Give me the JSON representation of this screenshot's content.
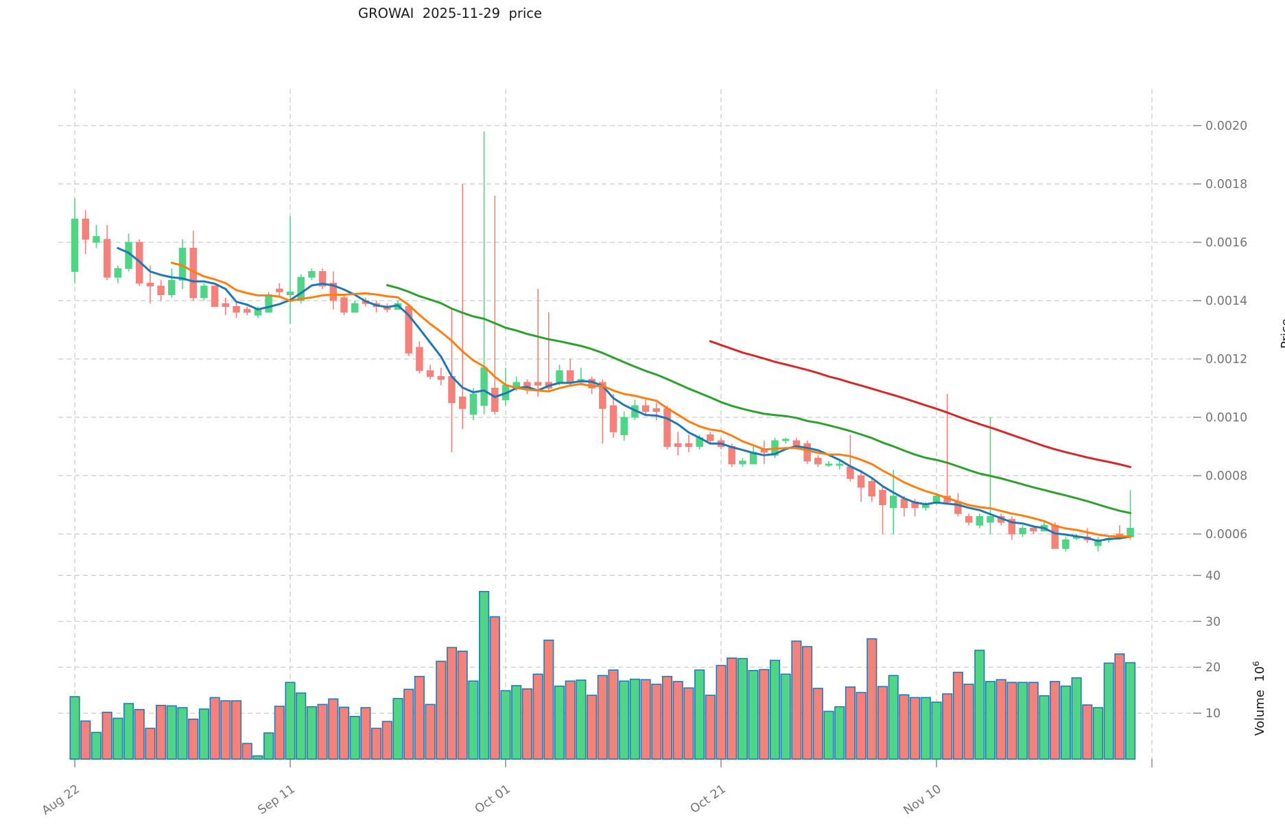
{
  "chart": {
    "title": "GROWAI  2025-11-29  price",
    "price_axis": {
      "label": "Price",
      "ticks": [
        {
          "label": "0.0020",
          "value": 0.002
        },
        {
          "label": "0.0018",
          "value": 0.0018
        },
        {
          "label": "0.0016",
          "value": 0.0016
        },
        {
          "label": "0.0014",
          "value": 0.0014
        },
        {
          "label": "0.0012",
          "value": 0.0012
        },
        {
          "label": "0.0010",
          "value": 0.001
        },
        {
          "label": "0.0008",
          "value": 0.0008
        },
        {
          "label": "0.0006",
          "value": 0.0006
        }
      ]
    },
    "volume_axis": {
      "label": "Volume",
      "unit_base": "10",
      "unit_exp": "6",
      "ticks": [
        {
          "label": "40",
          "value": 40
        },
        {
          "label": "30",
          "value": 30
        },
        {
          "label": "20",
          "value": 20
        },
        {
          "label": "10",
          "value": 10
        }
      ]
    },
    "x_axis": {
      "ticks": [
        {
          "day": 0,
          "label": "Aug 22"
        },
        {
          "day": 20,
          "label": "Sep 11"
        },
        {
          "day": 40,
          "label": "Oct 01"
        },
        {
          "day": 60,
          "label": "Oct 21"
        },
        {
          "day": 80,
          "label": "Nov 10"
        },
        {
          "day": 100,
          "label": ""
        }
      ]
    },
    "colors": {
      "up": "#50d587",
      "down": "#f4827a",
      "volume_edge": "#2379b5",
      "ma5": "#1f77b4",
      "ma10": "#ff7f0e",
      "ma30": "#2ca02c",
      "ma60": "#d62728",
      "grid": "#c9c9c9",
      "tick_text": "#757575",
      "title_text": "#1a1a1a"
    }
  },
  "chart_data": {
    "type": "candlestick",
    "title": "GROWAI  2025-11-29  price",
    "panels": [
      "price",
      "volume"
    ],
    "grid": "dashed",
    "price_ylim": [
      0.00048,
      0.00213
    ],
    "volume_ylim": [
      0,
      41
    ],
    "volume_unit": 1000000,
    "moving_averages": [
      {
        "name": "MA5",
        "window": 5,
        "color": "#1f77b4"
      },
      {
        "name": "MA10",
        "window": 10,
        "color": "#ff7f0e"
      },
      {
        "name": "MA30",
        "window": 30,
        "color": "#2ca02c"
      },
      {
        "name": "MA60",
        "window": 60,
        "color": "#d62728"
      }
    ],
    "candles": [
      {
        "d": "2025-08-22",
        "o": 0.0015,
        "h": 0.00175,
        "l": 0.00146,
        "c": 0.00168,
        "v": 13.6
      },
      {
        "d": "2025-08-23",
        "o": 0.00168,
        "h": 0.00171,
        "l": 0.00156,
        "c": 0.00161,
        "v": 8.3
      },
      {
        "d": "2025-08-24",
        "o": 0.0016,
        "h": 0.00166,
        "l": 0.00158,
        "c": 0.00162,
        "v": 5.8
      },
      {
        "d": "2025-08-25",
        "o": 0.00161,
        "h": 0.00166,
        "l": 0.00147,
        "c": 0.00148,
        "v": 10.2
      },
      {
        "d": "2025-08-26",
        "o": 0.00148,
        "h": 0.00152,
        "l": 0.00146,
        "c": 0.00151,
        "v": 8.9
      },
      {
        "d": "2025-08-27",
        "o": 0.00151,
        "h": 0.00163,
        "l": 0.0015,
        "c": 0.0016,
        "v": 12.1
      },
      {
        "d": "2025-08-28",
        "o": 0.0016,
        "h": 0.00161,
        "l": 0.00145,
        "c": 0.00146,
        "v": 10.8
      },
      {
        "d": "2025-08-29",
        "o": 0.00146,
        "h": 0.00152,
        "l": 0.00139,
        "c": 0.00145,
        "v": 6.7
      },
      {
        "d": "2025-08-30",
        "o": 0.00145,
        "h": 0.00147,
        "l": 0.0014,
        "c": 0.00142,
        "v": 11.7
      },
      {
        "d": "2025-08-31",
        "o": 0.00142,
        "h": 0.00151,
        "l": 0.00141,
        "c": 0.00147,
        "v": 11.6
      },
      {
        "d": "2025-09-01",
        "o": 0.00147,
        "h": 0.00161,
        "l": 0.00144,
        "c": 0.00158,
        "v": 11.2
      },
      {
        "d": "2025-09-02",
        "o": 0.00158,
        "h": 0.00164,
        "l": 0.0014,
        "c": 0.00141,
        "v": 8.7
      },
      {
        "d": "2025-09-03",
        "o": 0.00141,
        "h": 0.00146,
        "l": 0.0014,
        "c": 0.00145,
        "v": 10.9
      },
      {
        "d": "2025-09-04",
        "o": 0.00145,
        "h": 0.00145,
        "l": 0.00138,
        "c": 0.00138,
        "v": 13.4
      },
      {
        "d": "2025-09-05",
        "o": 0.00139,
        "h": 0.00141,
        "l": 0.00135,
        "c": 0.00138,
        "v": 12.7
      },
      {
        "d": "2025-09-06",
        "o": 0.00138,
        "h": 0.0014,
        "l": 0.00134,
        "c": 0.00136,
        "v": 12.7
      },
      {
        "d": "2025-09-07",
        "o": 0.00137,
        "h": 0.00138,
        "l": 0.00135,
        "c": 0.00136,
        "v": 3.4
      },
      {
        "d": "2025-09-08",
        "o": 0.00135,
        "h": 0.00138,
        "l": 0.00134,
        "c": 0.00137,
        "v": 0.7
      },
      {
        "d": "2025-09-09",
        "o": 0.00136,
        "h": 0.00143,
        "l": 0.00136,
        "c": 0.00142,
        "v": 5.7
      },
      {
        "d": "2025-09-10",
        "o": 0.00144,
        "h": 0.00146,
        "l": 0.00141,
        "c": 0.00143,
        "v": 11.5
      },
      {
        "d": "2025-09-11",
        "o": 0.00142,
        "h": 0.00169,
        "l": 0.00132,
        "c": 0.00143,
        "v": 16.7
      },
      {
        "d": "2025-09-12",
        "o": 0.0014,
        "h": 0.00149,
        "l": 0.00139,
        "c": 0.00148,
        "v": 14.4
      },
      {
        "d": "2025-09-13",
        "o": 0.00148,
        "h": 0.00151,
        "l": 0.00147,
        "c": 0.0015,
        "v": 11.4
      },
      {
        "d": "2025-09-14",
        "o": 0.0015,
        "h": 0.00151,
        "l": 0.00144,
        "c": 0.00145,
        "v": 11.9
      },
      {
        "d": "2025-09-15",
        "o": 0.00146,
        "h": 0.0015,
        "l": 0.00137,
        "c": 0.0014,
        "v": 13.1
      },
      {
        "d": "2025-09-16",
        "o": 0.00141,
        "h": 0.00142,
        "l": 0.00135,
        "c": 0.00136,
        "v": 11.3
      },
      {
        "d": "2025-09-17",
        "o": 0.00136,
        "h": 0.0014,
        "l": 0.00136,
        "c": 0.00139,
        "v": 9.3
      },
      {
        "d": "2025-09-18",
        "o": 0.0014,
        "h": 0.00141,
        "l": 0.00138,
        "c": 0.00139,
        "v": 11.2
      },
      {
        "d": "2025-09-19",
        "o": 0.00139,
        "h": 0.0014,
        "l": 0.00136,
        "c": 0.00138,
        "v": 6.7
      },
      {
        "d": "2025-09-20",
        "o": 0.00138,
        "h": 0.00139,
        "l": 0.00136,
        "c": 0.00137,
        "v": 8.2
      },
      {
        "d": "2025-09-21",
        "o": 0.00137,
        "h": 0.0014,
        "l": 0.00137,
        "c": 0.00139,
        "v": 13.2
      },
      {
        "d": "2025-09-22",
        "o": 0.00138,
        "h": 0.00139,
        "l": 0.00121,
        "c": 0.00122,
        "v": 15.2
      },
      {
        "d": "2025-09-23",
        "o": 0.00124,
        "h": 0.00126,
        "l": 0.00115,
        "c": 0.00116,
        "v": 18.0
      },
      {
        "d": "2025-09-24",
        "o": 0.00116,
        "h": 0.00118,
        "l": 0.00113,
        "c": 0.00114,
        "v": 11.9
      },
      {
        "d": "2025-09-25",
        "o": 0.00114,
        "h": 0.00117,
        "l": 0.00111,
        "c": 0.00113,
        "v": 21.3
      },
      {
        "d": "2025-09-26",
        "o": 0.00114,
        "h": 0.00137,
        "l": 0.00088,
        "c": 0.00105,
        "v": 24.3
      },
      {
        "d": "2025-09-27",
        "o": 0.00107,
        "h": 0.0018,
        "l": 0.00096,
        "c": 0.00103,
        "v": 23.5
      },
      {
        "d": "2025-09-28",
        "o": 0.00101,
        "h": 0.0011,
        "l": 0.00099,
        "c": 0.00108,
        "v": 17.0
      },
      {
        "d": "2025-09-29",
        "o": 0.00104,
        "h": 0.00198,
        "l": 0.00101,
        "c": 0.00117,
        "v": 36.5
      },
      {
        "d": "2025-09-30",
        "o": 0.0011,
        "h": 0.00176,
        "l": 0.00101,
        "c": 0.00102,
        "v": 31.0
      },
      {
        "d": "2025-10-01",
        "o": 0.00106,
        "h": 0.00117,
        "l": 0.00104,
        "c": 0.00111,
        "v": 14.9
      },
      {
        "d": "2025-10-02",
        "o": 0.0011,
        "h": 0.00114,
        "l": 0.00109,
        "c": 0.00112,
        "v": 16.0
      },
      {
        "d": "2025-10-03",
        "o": 0.00112,
        "h": 0.00113,
        "l": 0.00108,
        "c": 0.0011,
        "v": 15.3
      },
      {
        "d": "2025-10-04",
        "o": 0.00112,
        "h": 0.00144,
        "l": 0.00107,
        "c": 0.00111,
        "v": 18.5
      },
      {
        "d": "2025-10-05",
        "o": 0.00112,
        "h": 0.00136,
        "l": 0.00109,
        "c": 0.0011,
        "v": 25.9
      },
      {
        "d": "2025-10-06",
        "o": 0.00112,
        "h": 0.00118,
        "l": 0.00111,
        "c": 0.00116,
        "v": 15.9
      },
      {
        "d": "2025-10-07",
        "o": 0.00116,
        "h": 0.0012,
        "l": 0.00111,
        "c": 0.00112,
        "v": 17.0
      },
      {
        "d": "2025-10-08",
        "o": 0.00112,
        "h": 0.00117,
        "l": 0.00111,
        "c": 0.00113,
        "v": 17.2
      },
      {
        "d": "2025-10-09",
        "o": 0.00113,
        "h": 0.00114,
        "l": 0.00108,
        "c": 0.0011,
        "v": 13.9
      },
      {
        "d": "2025-10-10",
        "o": 0.00112,
        "h": 0.00113,
        "l": 0.00091,
        "c": 0.00103,
        "v": 18.2
      },
      {
        "d": "2025-10-11",
        "o": 0.00104,
        "h": 0.00108,
        "l": 0.00093,
        "c": 0.00095,
        "v": 19.4
      },
      {
        "d": "2025-10-12",
        "o": 0.00094,
        "h": 0.00102,
        "l": 0.00092,
        "c": 0.001,
        "v": 17.0
      },
      {
        "d": "2025-10-13",
        "o": 0.001,
        "h": 0.00106,
        "l": 0.00099,
        "c": 0.00104,
        "v": 17.4
      },
      {
        "d": "2025-10-14",
        "o": 0.00104,
        "h": 0.00106,
        "l": 0.00101,
        "c": 0.00102,
        "v": 17.3
      },
      {
        "d": "2025-10-15",
        "o": 0.00103,
        "h": 0.00105,
        "l": 0.00099,
        "c": 0.00102,
        "v": 16.3
      },
      {
        "d": "2025-10-16",
        "o": 0.00103,
        "h": 0.00104,
        "l": 0.00089,
        "c": 0.0009,
        "v": 18.0
      },
      {
        "d": "2025-10-17",
        "o": 0.00091,
        "h": 0.00095,
        "l": 0.00087,
        "c": 0.0009,
        "v": 16.9
      },
      {
        "d": "2025-10-18",
        "o": 0.00091,
        "h": 0.00094,
        "l": 0.00088,
        "c": 0.0009,
        "v": 15.5
      },
      {
        "d": "2025-10-19",
        "o": 0.0009,
        "h": 0.00094,
        "l": 0.00089,
        "c": 0.00093,
        "v": 19.4
      },
      {
        "d": "2025-10-20",
        "o": 0.00094,
        "h": 0.00095,
        "l": 0.00091,
        "c": 0.00092,
        "v": 13.9
      },
      {
        "d": "2025-10-21",
        "o": 0.00092,
        "h": 0.00093,
        "l": 0.00089,
        "c": 0.0009,
        "v": 20.4
      },
      {
        "d": "2025-10-22",
        "o": 0.0009,
        "h": 0.00091,
        "l": 0.00083,
        "c": 0.00084,
        "v": 22.0
      },
      {
        "d": "2025-10-23",
        "o": 0.00084,
        "h": 0.00086,
        "l": 0.00083,
        "c": 0.00085,
        "v": 21.9
      },
      {
        "d": "2025-10-24",
        "o": 0.00084,
        "h": 0.0009,
        "l": 0.00084,
        "c": 0.00088,
        "v": 19.3
      },
      {
        "d": "2025-10-25",
        "o": 0.00089,
        "h": 0.00092,
        "l": 0.00084,
        "c": 0.00088,
        "v": 19.5
      },
      {
        "d": "2025-10-26",
        "o": 0.00087,
        "h": 0.00093,
        "l": 0.00086,
        "c": 0.00092,
        "v": 21.5
      },
      {
        "d": "2025-10-27",
        "o": 0.00092,
        "h": 0.00093,
        "l": 0.00091,
        "c": 0.000925,
        "v": 18.5
      },
      {
        "d": "2025-10-28",
        "o": 0.00092,
        "h": 0.00093,
        "l": 0.00089,
        "c": 0.0009,
        "v": 25.7
      },
      {
        "d": "2025-10-29",
        "o": 0.00091,
        "h": 0.00092,
        "l": 0.00084,
        "c": 0.00085,
        "v": 24.5
      },
      {
        "d": "2025-10-30",
        "o": 0.00086,
        "h": 0.00087,
        "l": 0.00083,
        "c": 0.00084,
        "v": 15.4
      },
      {
        "d": "2025-10-31",
        "o": 0.00084,
        "h": 0.00085,
        "l": 0.00083,
        "c": 0.00084,
        "v": 10.4
      },
      {
        "d": "2025-11-01",
        "o": 0.00084,
        "h": 0.00085,
        "l": 0.00082,
        "c": 0.00084,
        "v": 11.4
      },
      {
        "d": "2025-11-02",
        "o": 0.00083,
        "h": 0.00094,
        "l": 0.00078,
        "c": 0.00079,
        "v": 15.7
      },
      {
        "d": "2025-11-03",
        "o": 0.0008,
        "h": 0.00082,
        "l": 0.00071,
        "c": 0.00076,
        "v": 14.5
      },
      {
        "d": "2025-11-04",
        "o": 0.00078,
        "h": 0.00079,
        "l": 0.00071,
        "c": 0.00073,
        "v": 26.2
      },
      {
        "d": "2025-11-05",
        "o": 0.00075,
        "h": 0.00076,
        "l": 0.0006,
        "c": 0.0007,
        "v": 15.8
      },
      {
        "d": "2025-11-06",
        "o": 0.00069,
        "h": 0.00082,
        "l": 0.0006,
        "c": 0.00073,
        "v": 18.2
      },
      {
        "d": "2025-11-07",
        "o": 0.00072,
        "h": 0.00073,
        "l": 0.00066,
        "c": 0.00069,
        "v": 14.0
      },
      {
        "d": "2025-11-08",
        "o": 0.00071,
        "h": 0.00072,
        "l": 0.00066,
        "c": 0.00069,
        "v": 13.4
      },
      {
        "d": "2025-11-09",
        "o": 0.00069,
        "h": 0.00071,
        "l": 0.00068,
        "c": 0.0007,
        "v": 13.4
      },
      {
        "d": "2025-11-10",
        "o": 0.00071,
        "h": 0.00074,
        "l": 0.0007,
        "c": 0.00073,
        "v": 12.4
      },
      {
        "d": "2025-11-11",
        "o": 0.00073,
        "h": 0.00108,
        "l": 0.0007,
        "c": 0.00071,
        "v": 14.2
      },
      {
        "d": "2025-11-12",
        "o": 0.00071,
        "h": 0.00074,
        "l": 0.00066,
        "c": 0.00067,
        "v": 18.9
      },
      {
        "d": "2025-11-13",
        "o": 0.00066,
        "h": 0.00067,
        "l": 0.00063,
        "c": 0.00064,
        "v": 16.3
      },
      {
        "d": "2025-11-14",
        "o": 0.00063,
        "h": 0.00067,
        "l": 0.00062,
        "c": 0.00066,
        "v": 23.7
      },
      {
        "d": "2025-11-15",
        "o": 0.00064,
        "h": 0.001,
        "l": 0.0006,
        "c": 0.00066,
        "v": 16.9
      },
      {
        "d": "2025-11-16",
        "o": 0.00066,
        "h": 0.00067,
        "l": 0.00063,
        "c": 0.00064,
        "v": 17.3
      },
      {
        "d": "2025-11-17",
        "o": 0.00065,
        "h": 0.00066,
        "l": 0.00058,
        "c": 0.0006,
        "v": 16.7
      },
      {
        "d": "2025-11-18",
        "o": 0.0006,
        "h": 0.00063,
        "l": 0.00059,
        "c": 0.00062,
        "v": 16.7
      },
      {
        "d": "2025-11-19",
        "o": 0.00062,
        "h": 0.00063,
        "l": 0.0006,
        "c": 0.00061,
        "v": 16.7
      },
      {
        "d": "2025-11-20",
        "o": 0.00061,
        "h": 0.00064,
        "l": 0.00061,
        "c": 0.00063,
        "v": 13.8
      },
      {
        "d": "2025-11-21",
        "o": 0.00063,
        "h": 0.00064,
        "l": 0.00055,
        "c": 0.00055,
        "v": 16.9
      },
      {
        "d": "2025-11-22",
        "o": 0.00055,
        "h": 0.00059,
        "l": 0.00054,
        "c": 0.00058,
        "v": 15.9
      },
      {
        "d": "2025-11-23",
        "o": 0.00059,
        "h": 0.0006,
        "l": 0.00058,
        "c": 0.00059,
        "v": 17.7
      },
      {
        "d": "2025-11-24",
        "o": 0.00059,
        "h": 0.00062,
        "l": 0.00057,
        "c": 0.00058,
        "v": 11.8
      },
      {
        "d": "2025-11-25",
        "o": 0.00056,
        "h": 0.00059,
        "l": 0.00054,
        "c": 0.00058,
        "v": 11.2
      },
      {
        "d": "2025-11-26",
        "o": 0.00058,
        "h": 0.00059,
        "l": 0.00057,
        "c": 0.000585,
        "v": 20.9
      },
      {
        "d": "2025-11-27",
        "o": 0.0006,
        "h": 0.00063,
        "l": 0.00058,
        "c": 0.00059,
        "v": 22.9
      },
      {
        "d": "2025-11-28",
        "o": 0.00059,
        "h": 0.00075,
        "l": 0.00058,
        "c": 0.00062,
        "v": 21.0
      }
    ]
  }
}
